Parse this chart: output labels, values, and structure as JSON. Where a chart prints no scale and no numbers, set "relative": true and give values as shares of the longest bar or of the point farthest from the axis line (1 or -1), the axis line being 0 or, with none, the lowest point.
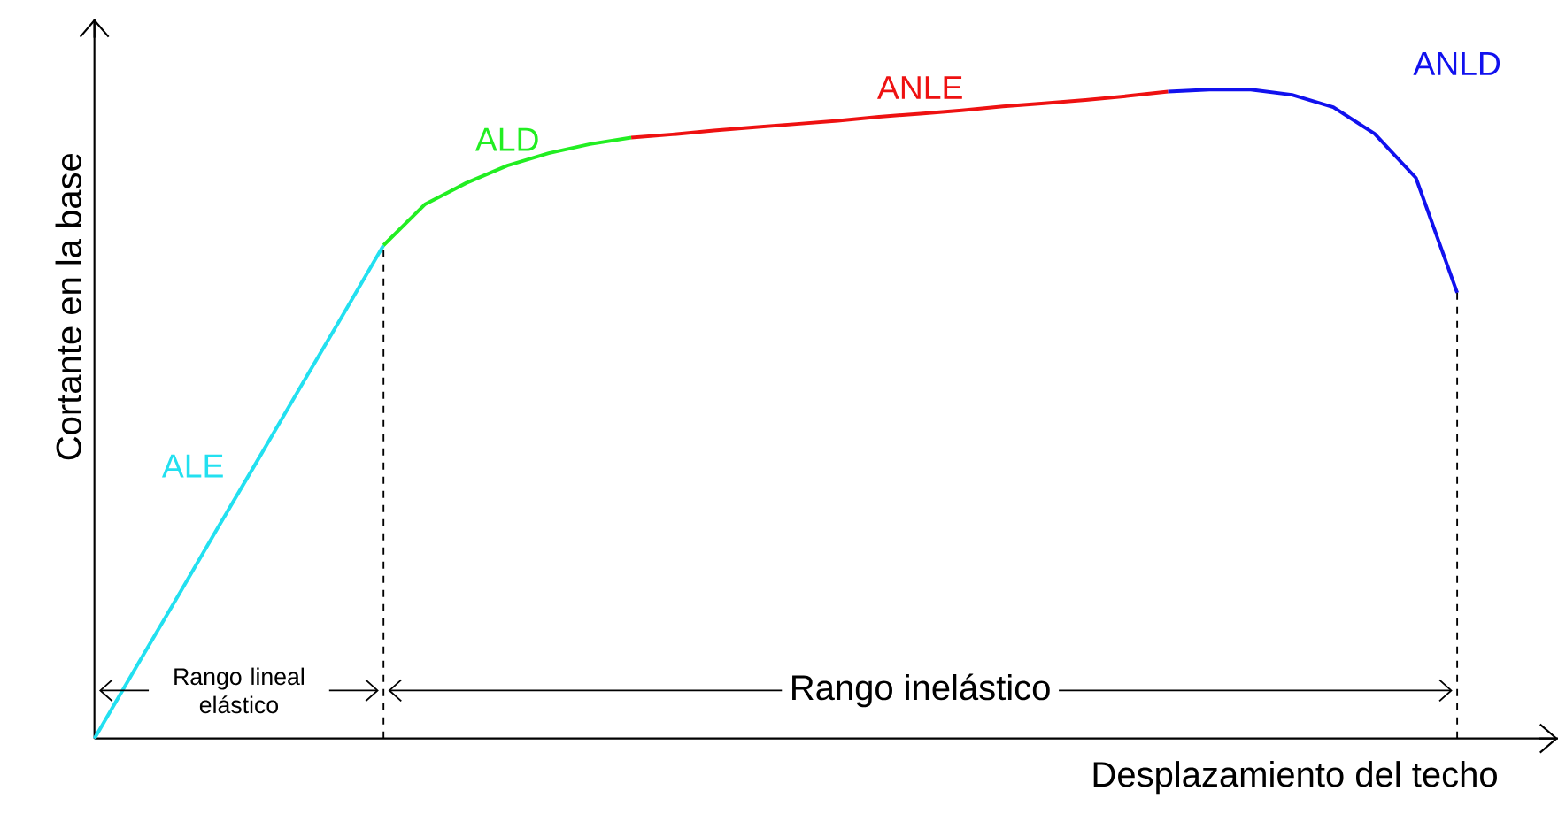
{
  "chart_data": {
    "type": "line",
    "relative": true,
    "xlabel": "Desplazamiento del techo",
    "ylabel": "Cortante en la base",
    "categories": [
      null,
      null,
      null,
      null,
      null,
      null,
      null,
      null,
      null,
      null,
      null,
      null,
      null,
      null,
      null,
      null,
      null,
      null,
      null,
      null,
      null,
      null,
      null,
      null,
      null,
      null,
      null,
      null,
      null,
      null,
      null,
      null,
      null,
      null
    ],
    "series": [
      {
        "name": "ALE",
        "color": "#22e0f0",
        "values": [
          0,
          0.109,
          0.217,
          0.326,
          0.434,
          0.543,
          0.651,
          0.76,
          null,
          null,
          null,
          null,
          null,
          null,
          null,
          null,
          null,
          null,
          null,
          null,
          null,
          null,
          null,
          null,
          null,
          null,
          null,
          null,
          null,
          null,
          null,
          null,
          null,
          null
        ]
      },
      {
        "name": "ALD",
        "color": "#22ee22",
        "values": [
          null,
          null,
          null,
          null,
          null,
          null,
          null,
          0.76,
          0.823,
          0.856,
          0.883,
          0.902,
          0.916,
          0.926,
          null,
          null,
          null,
          null,
          null,
          null,
          null,
          null,
          null,
          null,
          null,
          null,
          null,
          null,
          null,
          null,
          null,
          null,
          null,
          null
        ]
      },
      {
        "name": "ANLE",
        "color": "#ee1111",
        "values": [
          null,
          null,
          null,
          null,
          null,
          null,
          null,
          null,
          null,
          null,
          null,
          null,
          null,
          0.926,
          0.931,
          0.937,
          0.942,
          0.947,
          0.952,
          0.958,
          0.963,
          0.968,
          0.974,
          0.979,
          0.984,
          0.99,
          0.997,
          null,
          null,
          null,
          null,
          null,
          null,
          null
        ]
      },
      {
        "name": "ANLD",
        "color": "#1111ee",
        "values": [
          null,
          null,
          null,
          null,
          null,
          null,
          null,
          null,
          null,
          null,
          null,
          null,
          null,
          null,
          null,
          null,
          null,
          null,
          null,
          null,
          null,
          null,
          null,
          null,
          null,
          null,
          0.997,
          1.0,
          1.0,
          0.992,
          0.973,
          0.932,
          0.864,
          0.687
        ]
      }
    ],
    "annotations": [
      "Rango lineal elástico",
      "Rango inelástico"
    ]
  }
}
